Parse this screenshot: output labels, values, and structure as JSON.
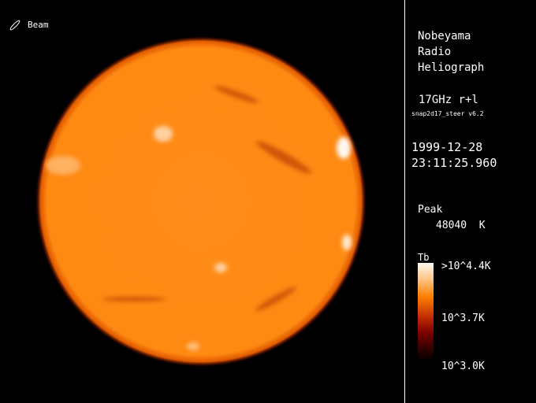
{
  "beam": {
    "label": "Beam",
    "icon": "beam-ellipse-icon"
  },
  "title_lines": [
    "Nobeyama",
    "Radio",
    "Heliograph"
  ],
  "frequency": "17GHz r+l",
  "program": "snap2d17_steer v6.2",
  "date": "1999-12-28",
  "time": "23:11:25.960",
  "peak": {
    "label": "Peak",
    "value": "48040  K"
  },
  "colorbar": {
    "title": "Tb",
    "max_label": ">10^4.4K",
    "mid_label": "10^3.7K",
    "min_label": "10^3.0K",
    "colors": [
      "#fffaf0",
      "#ffc080",
      "#ff8000",
      "#c83000",
      "#800000",
      "#300000",
      "#080000"
    ]
  },
  "image": {
    "disk_color": "#ff8a10",
    "limb_color": "#c02000"
  }
}
